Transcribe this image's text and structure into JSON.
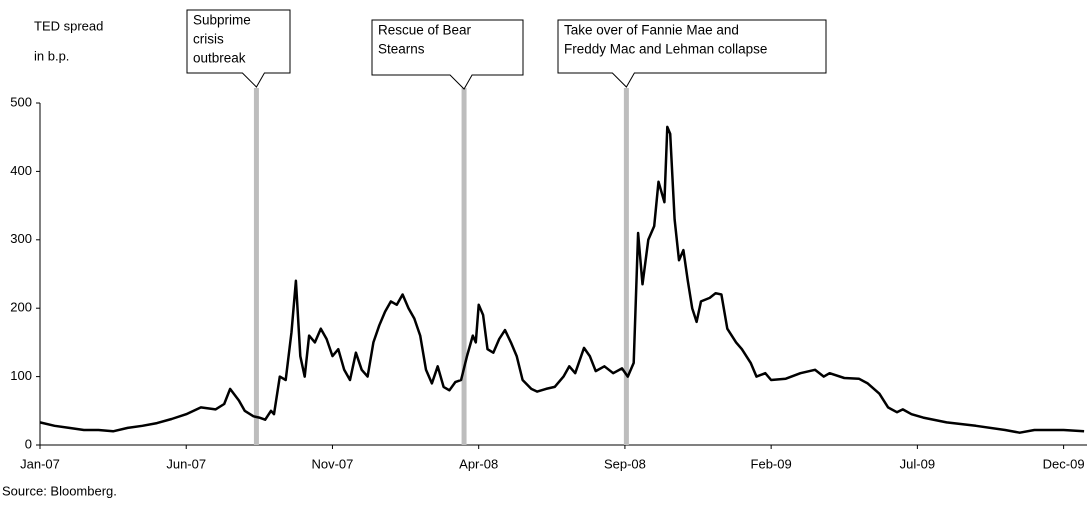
{
  "chart_data": {
    "type": "line",
    "ylabel": [
      "TED spread",
      "in b.p."
    ],
    "source": "Source: Bloomberg.",
    "xlim": [
      0,
      35.8
    ],
    "xticks": [
      {
        "value": 0,
        "label": "Jan-07"
      },
      {
        "value": 5,
        "label": "Jun-07"
      },
      {
        "value": 10,
        "label": "Nov-07"
      },
      {
        "value": 15,
        "label": "Apr-08"
      },
      {
        "value": 20,
        "label": "Sep-08"
      },
      {
        "value": 25,
        "label": "Feb-09"
      },
      {
        "value": 30,
        "label": "Jul-09"
      },
      {
        "value": 35,
        "label": "Dec-09"
      }
    ],
    "ylim": [
      0,
      500
    ],
    "yticks": [
      0,
      100,
      200,
      300,
      400,
      500
    ],
    "series": [
      {
        "color": "#000000",
        "x": [
          0,
          0.5,
          1,
          1.5,
          2,
          2.5,
          3,
          3.5,
          4,
          4.5,
          5,
          5.5,
          6,
          6.3,
          6.5,
          6.8,
          7,
          7.3,
          7.5,
          7.7,
          7.9,
          8.0,
          8.2,
          8.4,
          8.6,
          8.75,
          8.9,
          9.05,
          9.2,
          9.4,
          9.6,
          9.8,
          10,
          10.2,
          10.4,
          10.6,
          10.8,
          11.0,
          11.2,
          11.4,
          11.6,
          11.8,
          12.0,
          12.2,
          12.4,
          12.6,
          12.8,
          13.0,
          13.2,
          13.4,
          13.6,
          13.8,
          14.0,
          14.2,
          14.4,
          14.6,
          14.8,
          14.9,
          15.0,
          15.15,
          15.3,
          15.5,
          15.7,
          15.9,
          16.1,
          16.3,
          16.5,
          16.8,
          17.0,
          17.3,
          17.6,
          17.9,
          18.1,
          18.3,
          18.6,
          18.8,
          19.0,
          19.3,
          19.6,
          19.9,
          20.1,
          20.3,
          20.45,
          20.6,
          20.8,
          21.0,
          21.15,
          21.35,
          21.45,
          21.55,
          21.7,
          21.85,
          22.0,
          22.15,
          22.3,
          22.45,
          22.6,
          22.9,
          23.1,
          23.3,
          23.5,
          23.8,
          24.0,
          24.3,
          24.5,
          24.8,
          25.0,
          25.5,
          26.0,
          26.5,
          26.8,
          27.0,
          27.5,
          28.0,
          28.3,
          28.7,
          29.0,
          29.3,
          29.5,
          29.8,
          30.2,
          31,
          32,
          33,
          33.5,
          34,
          35,
          35.7
        ],
        "values": [
          33,
          28,
          25,
          22,
          22,
          20,
          25,
          28,
          32,
          38,
          45,
          55,
          52,
          60,
          82,
          65,
          50,
          42,
          40,
          37,
          50,
          45,
          100,
          95,
          165,
          240,
          130,
          100,
          160,
          150,
          170,
          155,
          130,
          140,
          110,
          95,
          135,
          110,
          100,
          150,
          175,
          195,
          210,
          205,
          220,
          200,
          185,
          160,
          110,
          90,
          115,
          85,
          80,
          92,
          95,
          130,
          160,
          150,
          205,
          190,
          140,
          135,
          155,
          168,
          150,
          130,
          95,
          82,
          78,
          82,
          85,
          100,
          115,
          105,
          142,
          130,
          108,
          115,
          105,
          112,
          100,
          120,
          310,
          235,
          300,
          320,
          385,
          355,
          465,
          455,
          330,
          270,
          285,
          240,
          200,
          180,
          210,
          215,
          222,
          220,
          170,
          150,
          140,
          120,
          100,
          105,
          95,
          97,
          105,
          110,
          100,
          105,
          98,
          97,
          90,
          75,
          55,
          48,
          52,
          45,
          40,
          33,
          28,
          22,
          18,
          22,
          22,
          20
        ]
      }
    ],
    "annotations": [
      {
        "x": 7.4,
        "lines": [
          "Subprime",
          "crisis",
          "outbreak"
        ]
      },
      {
        "x": 14.5,
        "lines": [
          "Rescue of Bear",
          "Stearns"
        ]
      },
      {
        "x": 20.05,
        "lines": [
          "Take over of Fannie Mae and",
          "Freddy Mac and Lehman collapse"
        ]
      }
    ]
  }
}
